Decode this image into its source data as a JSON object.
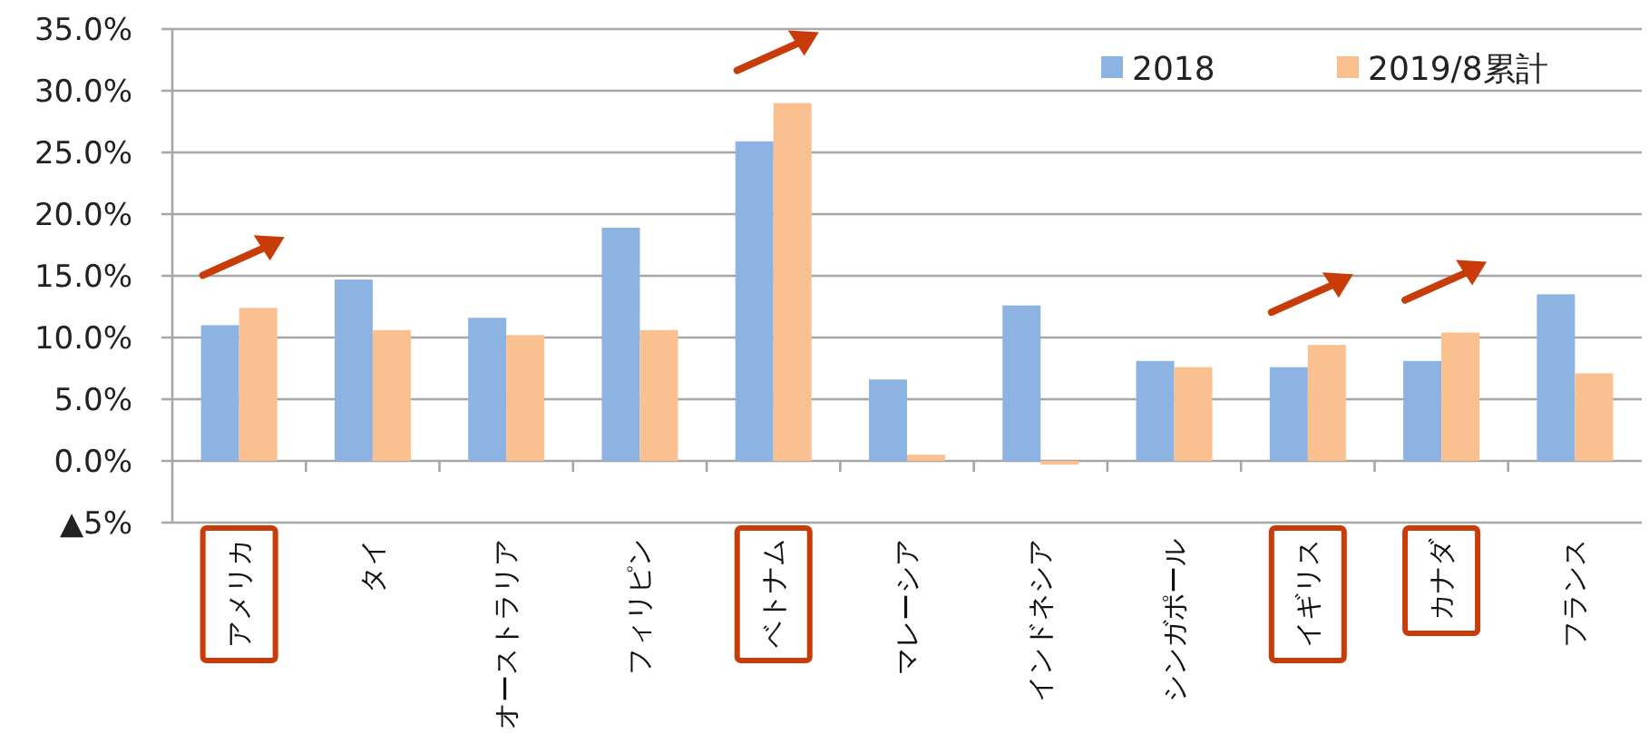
{
  "chart_data": {
    "type": "bar",
    "categories": [
      "アメリカ",
      "タイ",
      "オーストラリア",
      "フィリピン",
      "ベトナム",
      "マレーシア",
      "インドネシア",
      "シンガポール",
      "イギリス",
      "カナダ",
      "フランス"
    ],
    "series": [
      {
        "name": "2018",
        "color": "#8db3e2",
        "values": [
          11.0,
          14.7,
          11.6,
          18.9,
          25.9,
          6.6,
          12.6,
          8.1,
          7.6,
          8.1,
          13.5
        ]
      },
      {
        "name": "2019/8累計",
        "color": "#fac090",
        "values": [
          12.4,
          10.6,
          10.2,
          10.6,
          29.0,
          0.5,
          -0.3,
          7.6,
          9.4,
          10.4,
          7.1
        ]
      }
    ],
    "ylim": [
      -5,
      35
    ],
    "yticks": [
      {
        "value": -5,
        "label": "▲5%"
      },
      {
        "value": 0,
        "label": "0.0%"
      },
      {
        "value": 5,
        "label": "5.0%"
      },
      {
        "value": 10,
        "label": "10.0%"
      },
      {
        "value": 15,
        "label": "15.0%"
      },
      {
        "value": 20,
        "label": "20.0%"
      },
      {
        "value": 25,
        "label": "25.0%"
      },
      {
        "value": 30,
        "label": "30.0%"
      },
      {
        "value": 35,
        "label": "35.0%"
      }
    ],
    "grid": "y",
    "legend": "top right"
  }
}
